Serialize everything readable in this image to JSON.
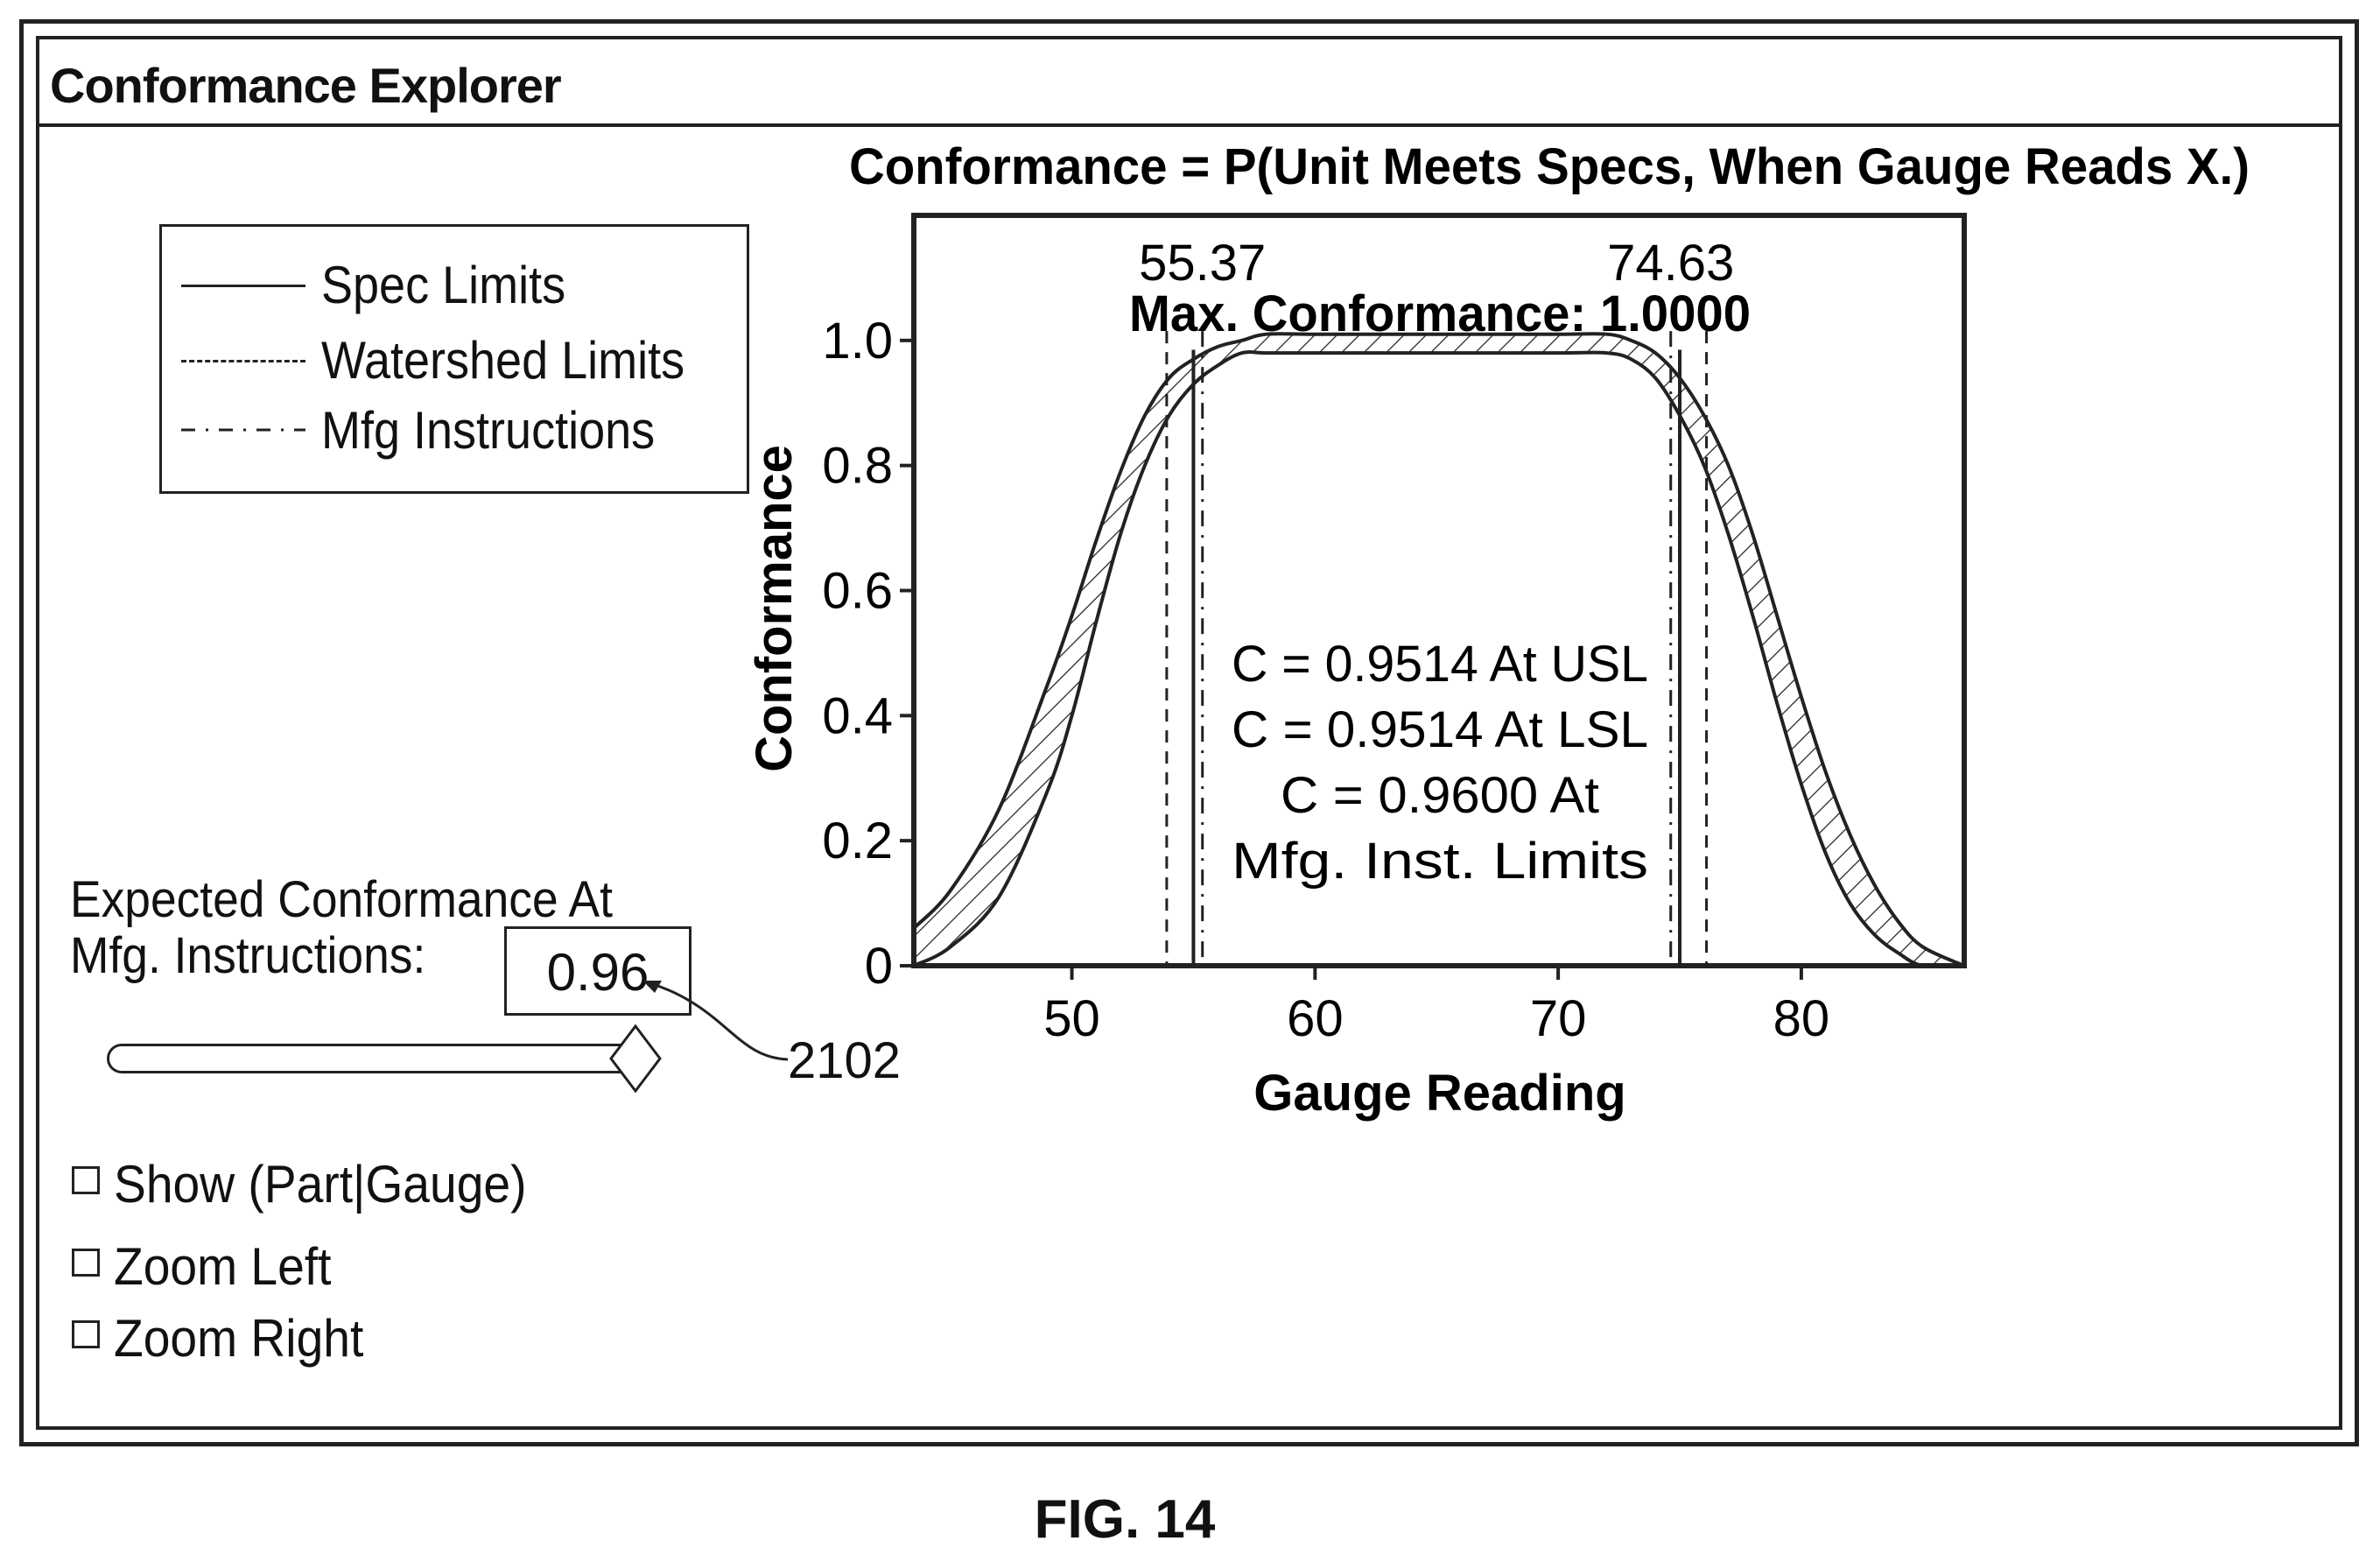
{
  "window": {
    "title": "Conformance Explorer"
  },
  "legend": {
    "items": [
      {
        "label": "Spec Limits",
        "style": "solid"
      },
      {
        "label": "Watershed Limits",
        "style": "dashed"
      },
      {
        "label": "Mfg Instructions",
        "style": "dash-dot"
      }
    ]
  },
  "controls": {
    "expected_label_line1": "Expected Conformance At",
    "expected_label_line2": "Mfg. Instructions:",
    "expected_value": "0.96",
    "slider_level": 0.96,
    "reference_number": "2102",
    "checkboxes": [
      {
        "label": "Show (Part|Gauge)",
        "checked": false
      },
      {
        "label": "Zoom Left",
        "checked": false
      },
      {
        "label": "Zoom Right",
        "checked": false
      }
    ]
  },
  "chart_data": {
    "type": "area",
    "title": "Conformance = P(Unit Meets Specs, When Gauge Reads X.)",
    "xlabel": "Gauge Reading",
    "ylabel": "Conformance",
    "xlim": [
      43.5,
      86.7
    ],
    "ylim": [
      0,
      1.2
    ],
    "x_ticks": [
      50,
      60,
      70,
      80
    ],
    "x_tick_labels": [
      "50",
      "60",
      "70",
      "80"
    ],
    "y_ticks": [
      0,
      0.2,
      0.4,
      0.6,
      0.8,
      1.0
    ],
    "y_tick_labels": [
      "0",
      "0.2",
      "0.4",
      "0.6",
      "0.8",
      "1.0"
    ],
    "grid": false,
    "band": {
      "x": [
        43.5,
        45,
        47,
        49,
        50,
        51,
        52,
        53,
        54,
        55,
        56,
        57,
        58,
        60,
        65,
        70,
        72,
        73,
        74,
        75,
        76,
        77,
        78,
        79,
        80,
        81,
        82,
        83,
        84,
        85,
        86.7
      ],
      "upper": [
        0.06,
        0.12,
        0.25,
        0.45,
        0.56,
        0.68,
        0.79,
        0.88,
        0.94,
        0.97,
        0.99,
        1.0,
        1.01,
        1.01,
        1.01,
        1.01,
        1.01,
        1.0,
        0.98,
        0.94,
        0.88,
        0.8,
        0.69,
        0.56,
        0.43,
        0.31,
        0.21,
        0.13,
        0.07,
        0.03,
        0.0
      ],
      "lower": [
        0.0,
        0.03,
        0.11,
        0.28,
        0.4,
        0.55,
        0.69,
        0.8,
        0.88,
        0.93,
        0.96,
        0.98,
        0.98,
        0.98,
        0.98,
        0.98,
        0.98,
        0.97,
        0.94,
        0.88,
        0.8,
        0.69,
        0.56,
        0.42,
        0.29,
        0.18,
        0.1,
        0.05,
        0.02,
        0.0,
        0.0
      ]
    },
    "lines": {
      "spec_limits": [
        55.0,
        75.0
      ],
      "watershed_limits": [
        53.9,
        76.1
      ],
      "mfg_instructions": [
        55.37,
        74.63
      ]
    },
    "limit_labels": [
      "55.37",
      "74.63"
    ],
    "max_conformance_label": "Max. Conformance: 1.0000",
    "annotation_lines": [
      "C = 0.9514 At USL",
      "C = 0.9514 At LSL",
      "C = 0.9600 At",
      "Mfg. Inst. Limits"
    ]
  },
  "figure_caption": "FIG. 14"
}
